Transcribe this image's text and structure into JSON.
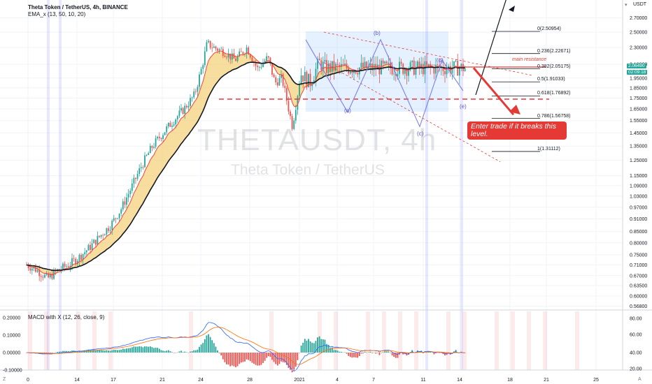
{
  "header": {
    "symbol": "Theta Token / TetherUS, 4h, BINANCE",
    "indicator": "EMA_x (13, 50, 10, 20)",
    "macd_label": "MACD with X (12, 26, close, 9)"
  },
  "watermark": {
    "ticker": "THETAUSDT, 4h",
    "name": "Theta Token / TetherUS"
  },
  "currency": "USDT",
  "price_tag": {
    "value": "2.06490",
    "timer": "02:09:18"
  },
  "annotations": {
    "resistance": "main resistance",
    "callout": "Enter trade if it breaks this level.",
    "waves": [
      "(a)",
      "(b)",
      "(c)",
      "(d)",
      "(e)"
    ]
  },
  "fib_levels": [
    "0(2.50954)",
    "0.236(2.22671)",
    "0.382(2.05175)",
    "0.5(1.91033)",
    "0.618(1.76892)",
    "0.786(1.56758)",
    "1(1.31112)"
  ],
  "colors": {
    "up": "#26a69a",
    "down": "#ef5350",
    "ema_fast": "#f44336",
    "ema_slow": "#131722",
    "fill": "#f3c34f",
    "fib": "#131722",
    "dashed": "#e53935",
    "box": "#4fa3f7",
    "wave": "#7e7ef0"
  },
  "chart_data": {
    "type": "candlestick",
    "title": "Theta Token / TetherUS, 4h, BINANCE",
    "y_scale": "log",
    "ylim": [
      0.56,
      3.9
    ],
    "y_ticks": [
      "2.70000",
      "2.50000",
      "2.30000",
      "2.10000",
      "1.95000",
      "1.85000",
      "1.75000",
      "1.65000",
      "1.55000",
      "1.45000",
      "1.35000",
      "1.25000",
      "1.15000",
      "1.09000",
      "1.03000",
      "0.97000",
      "0.91000",
      "0.85000",
      "0.80000",
      "0.75000",
      "0.71000",
      "0.67000",
      "0.63500",
      "0.60000",
      "0.56800"
    ],
    "x_ticks": [
      "0",
      "14",
      "17",
      "21",
      "24",
      "28",
      "2021",
      "4",
      "7",
      "11",
      "14",
      "18",
      "21",
      "25"
    ],
    "price_path": [
      [
        0,
        0.71
      ],
      [
        15,
        0.69
      ],
      [
        30,
        0.66
      ],
      [
        45,
        0.69
      ],
      [
        60,
        0.71
      ],
      [
        75,
        0.74
      ],
      [
        90,
        0.78
      ],
      [
        105,
        0.83
      ],
      [
        120,
        0.88
      ],
      [
        135,
        0.96
      ],
      [
        150,
        1.08
      ],
      [
        165,
        1.22
      ],
      [
        180,
        1.35
      ],
      [
        195,
        1.45
      ],
      [
        210,
        1.55
      ],
      [
        225,
        1.65
      ],
      [
        240,
        1.78
      ],
      [
        250,
        2.05
      ],
      [
        258,
        2.35
      ],
      [
        268,
        2.3
      ],
      [
        282,
        2.25
      ],
      [
        298,
        2.15
      ],
      [
        315,
        2.3
      ],
      [
        330,
        2.05
      ],
      [
        345,
        2.18
      ],
      [
        355,
        1.9
      ],
      [
        365,
        1.95
      ],
      [
        380,
        1.5
      ],
      [
        392,
        2.0
      ],
      [
        405,
        1.9
      ],
      [
        418,
        2.12
      ],
      [
        428,
        2.06
      ]
    ],
    "fib_retracement": [
      {
        "level": 0,
        "price": 2.50954
      },
      {
        "level": 0.236,
        "price": 2.22671
      },
      {
        "level": 0.382,
        "price": 2.05175
      },
      {
        "level": 0.5,
        "price": 1.91033
      },
      {
        "level": 0.618,
        "price": 1.76892
      },
      {
        "level": 0.786,
        "price": 1.56758
      },
      {
        "level": 1,
        "price": 1.31112
      }
    ],
    "horizontal_lines": [
      {
        "price": 2.07,
        "label": "main resistance"
      },
      {
        "price": 1.74,
        "label": ""
      }
    ],
    "macd": {
      "y_ticks": [
        "0.20000",
        "0.10000",
        "0.00000",
        "-0.10000"
      ],
      "rsi_ticks": [
        "80.00",
        "60.00",
        "40.00",
        "20.00"
      ],
      "ylim": [
        -0.13,
        0.23
      ]
    }
  }
}
